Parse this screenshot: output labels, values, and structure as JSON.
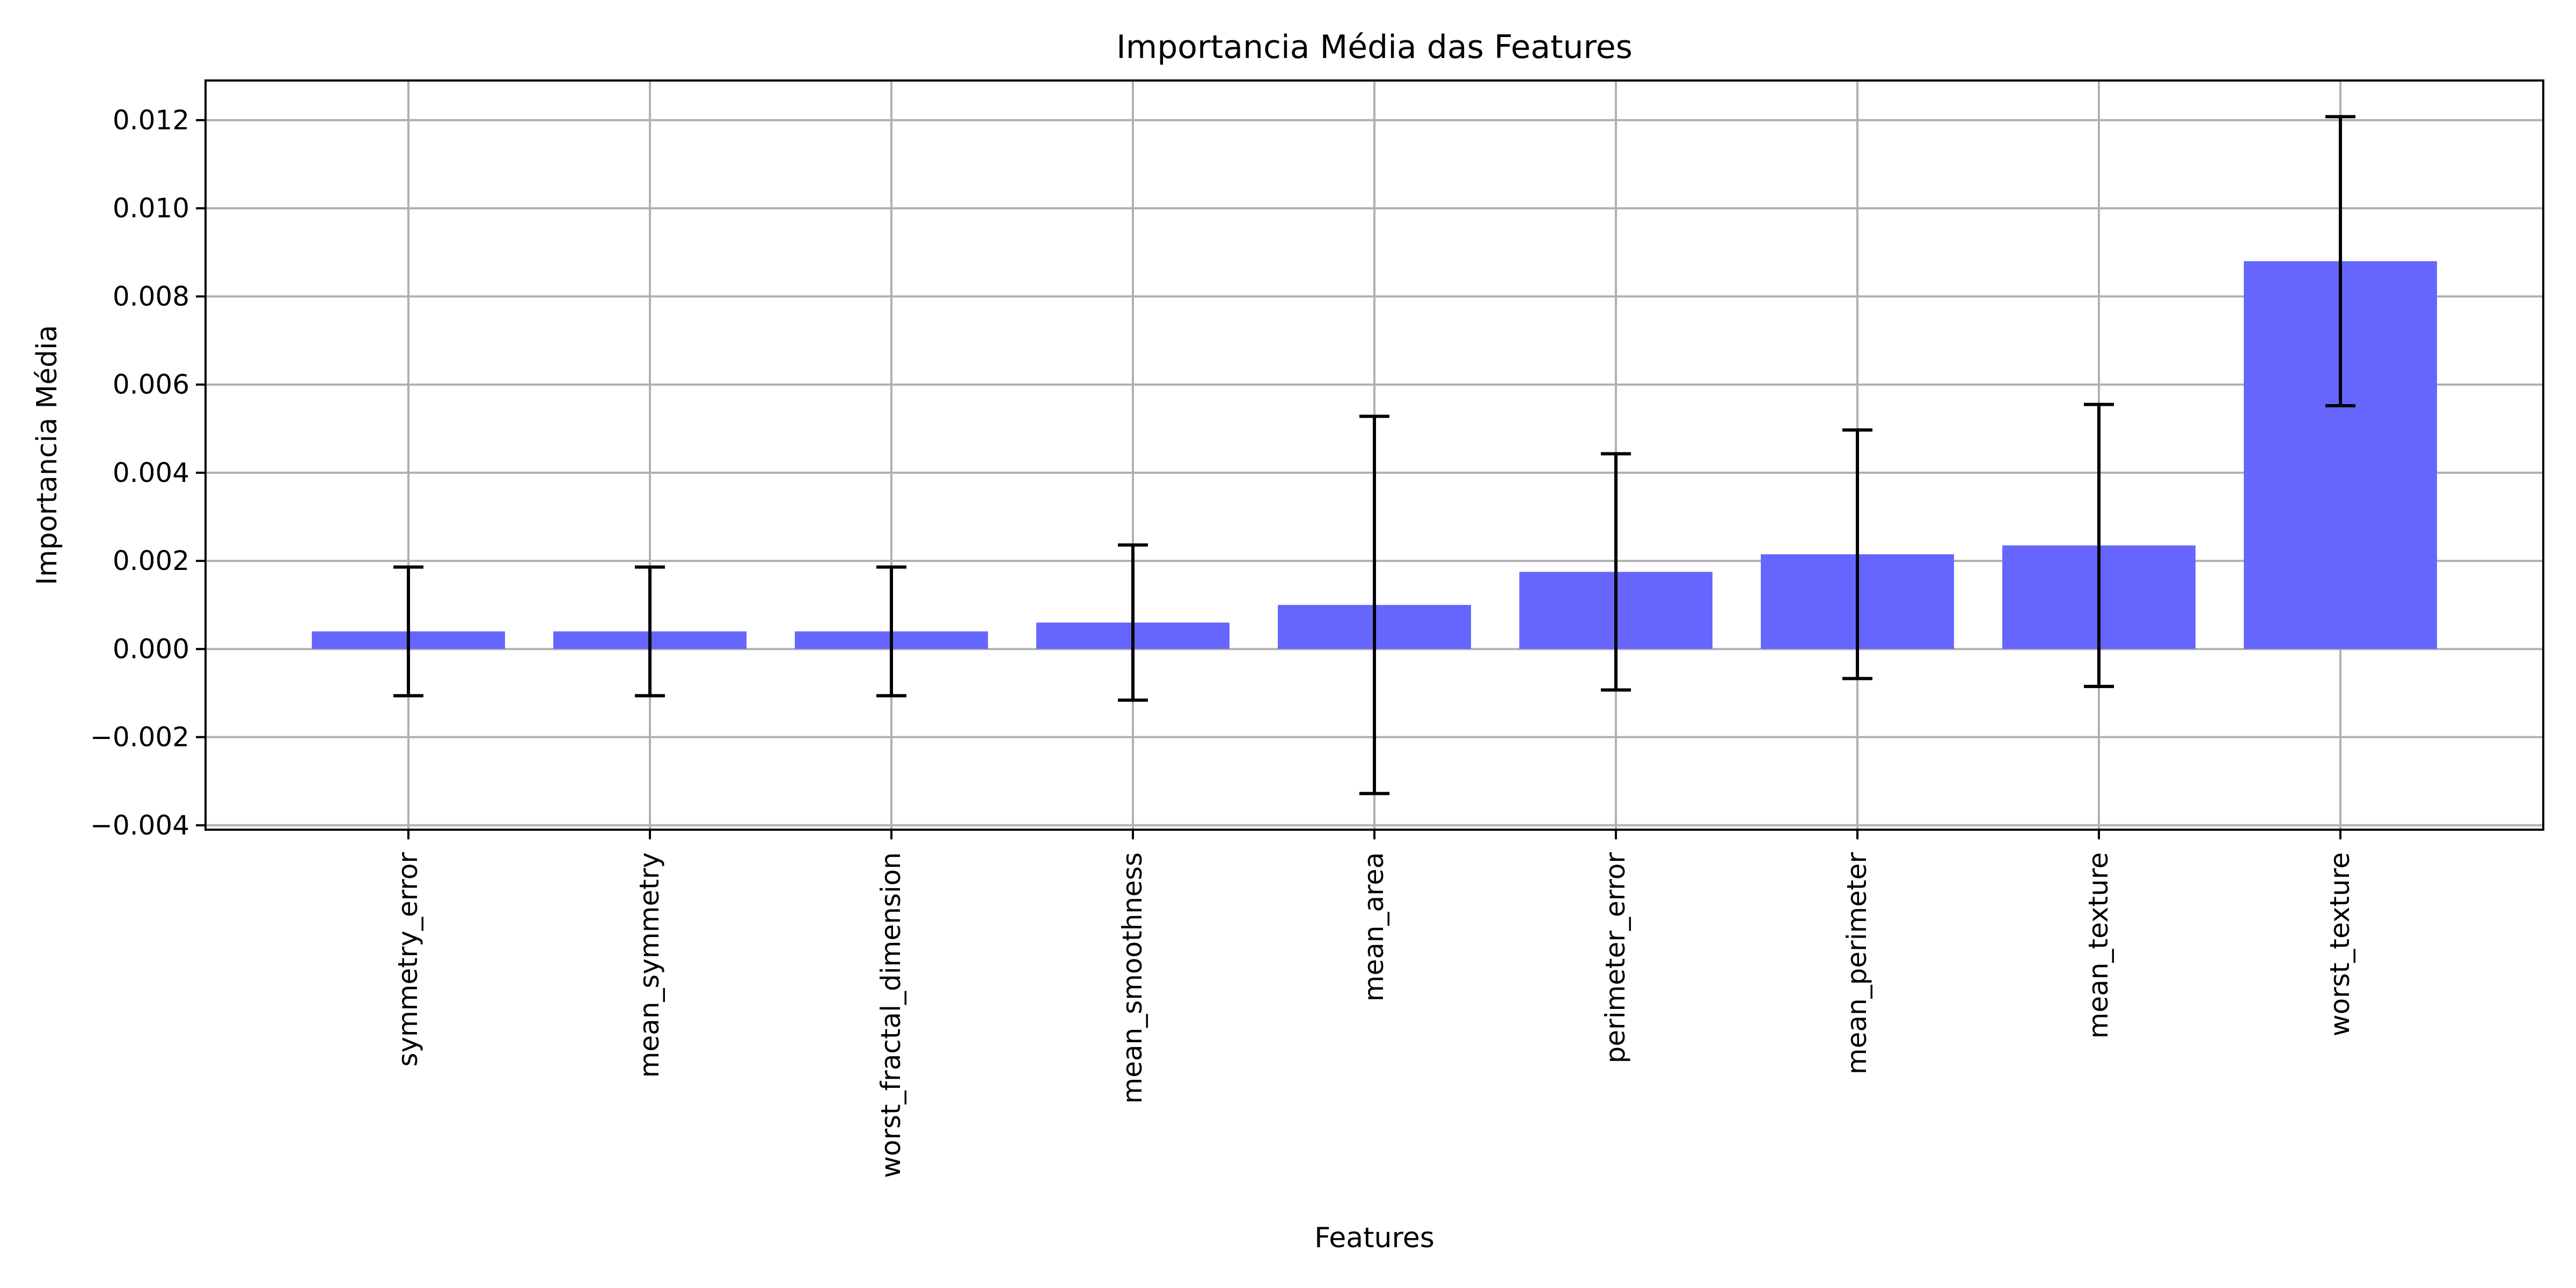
{
  "chart_data": {
    "type": "bar",
    "title": "Importancia Média das Features",
    "xlabel": "Features",
    "ylabel": "Importancia Média",
    "categories": [
      "symmetry_error",
      "mean_symmetry",
      "worst_fractal_dimension",
      "mean_smoothness",
      "mean_area",
      "perimeter_error",
      "mean_perimeter",
      "mean_texture",
      "worst_texture"
    ],
    "values": [
      0.0004,
      0.0004,
      0.0004,
      0.0006,
      0.001,
      0.00175,
      0.00215,
      0.00235,
      0.0088
    ],
    "error": [
      0.00146,
      0.00146,
      0.00146,
      0.00176,
      0.00428,
      0.00268,
      0.00282,
      0.0032,
      0.00328
    ],
    "ylim": [
      -0.0041,
      0.0129
    ],
    "yticks": [
      -0.004,
      -0.002,
      0.0,
      0.002,
      0.004,
      0.006,
      0.008,
      0.01,
      0.012
    ],
    "ytick_labels": [
      "−0.004",
      "−0.002",
      "0.000",
      "0.002",
      "0.004",
      "0.006",
      "0.008",
      "0.010",
      "0.012"
    ],
    "grid": true,
    "bar_color": "#6666ff",
    "error_color": "#000000",
    "grid_color": "#b0b0b0"
  }
}
